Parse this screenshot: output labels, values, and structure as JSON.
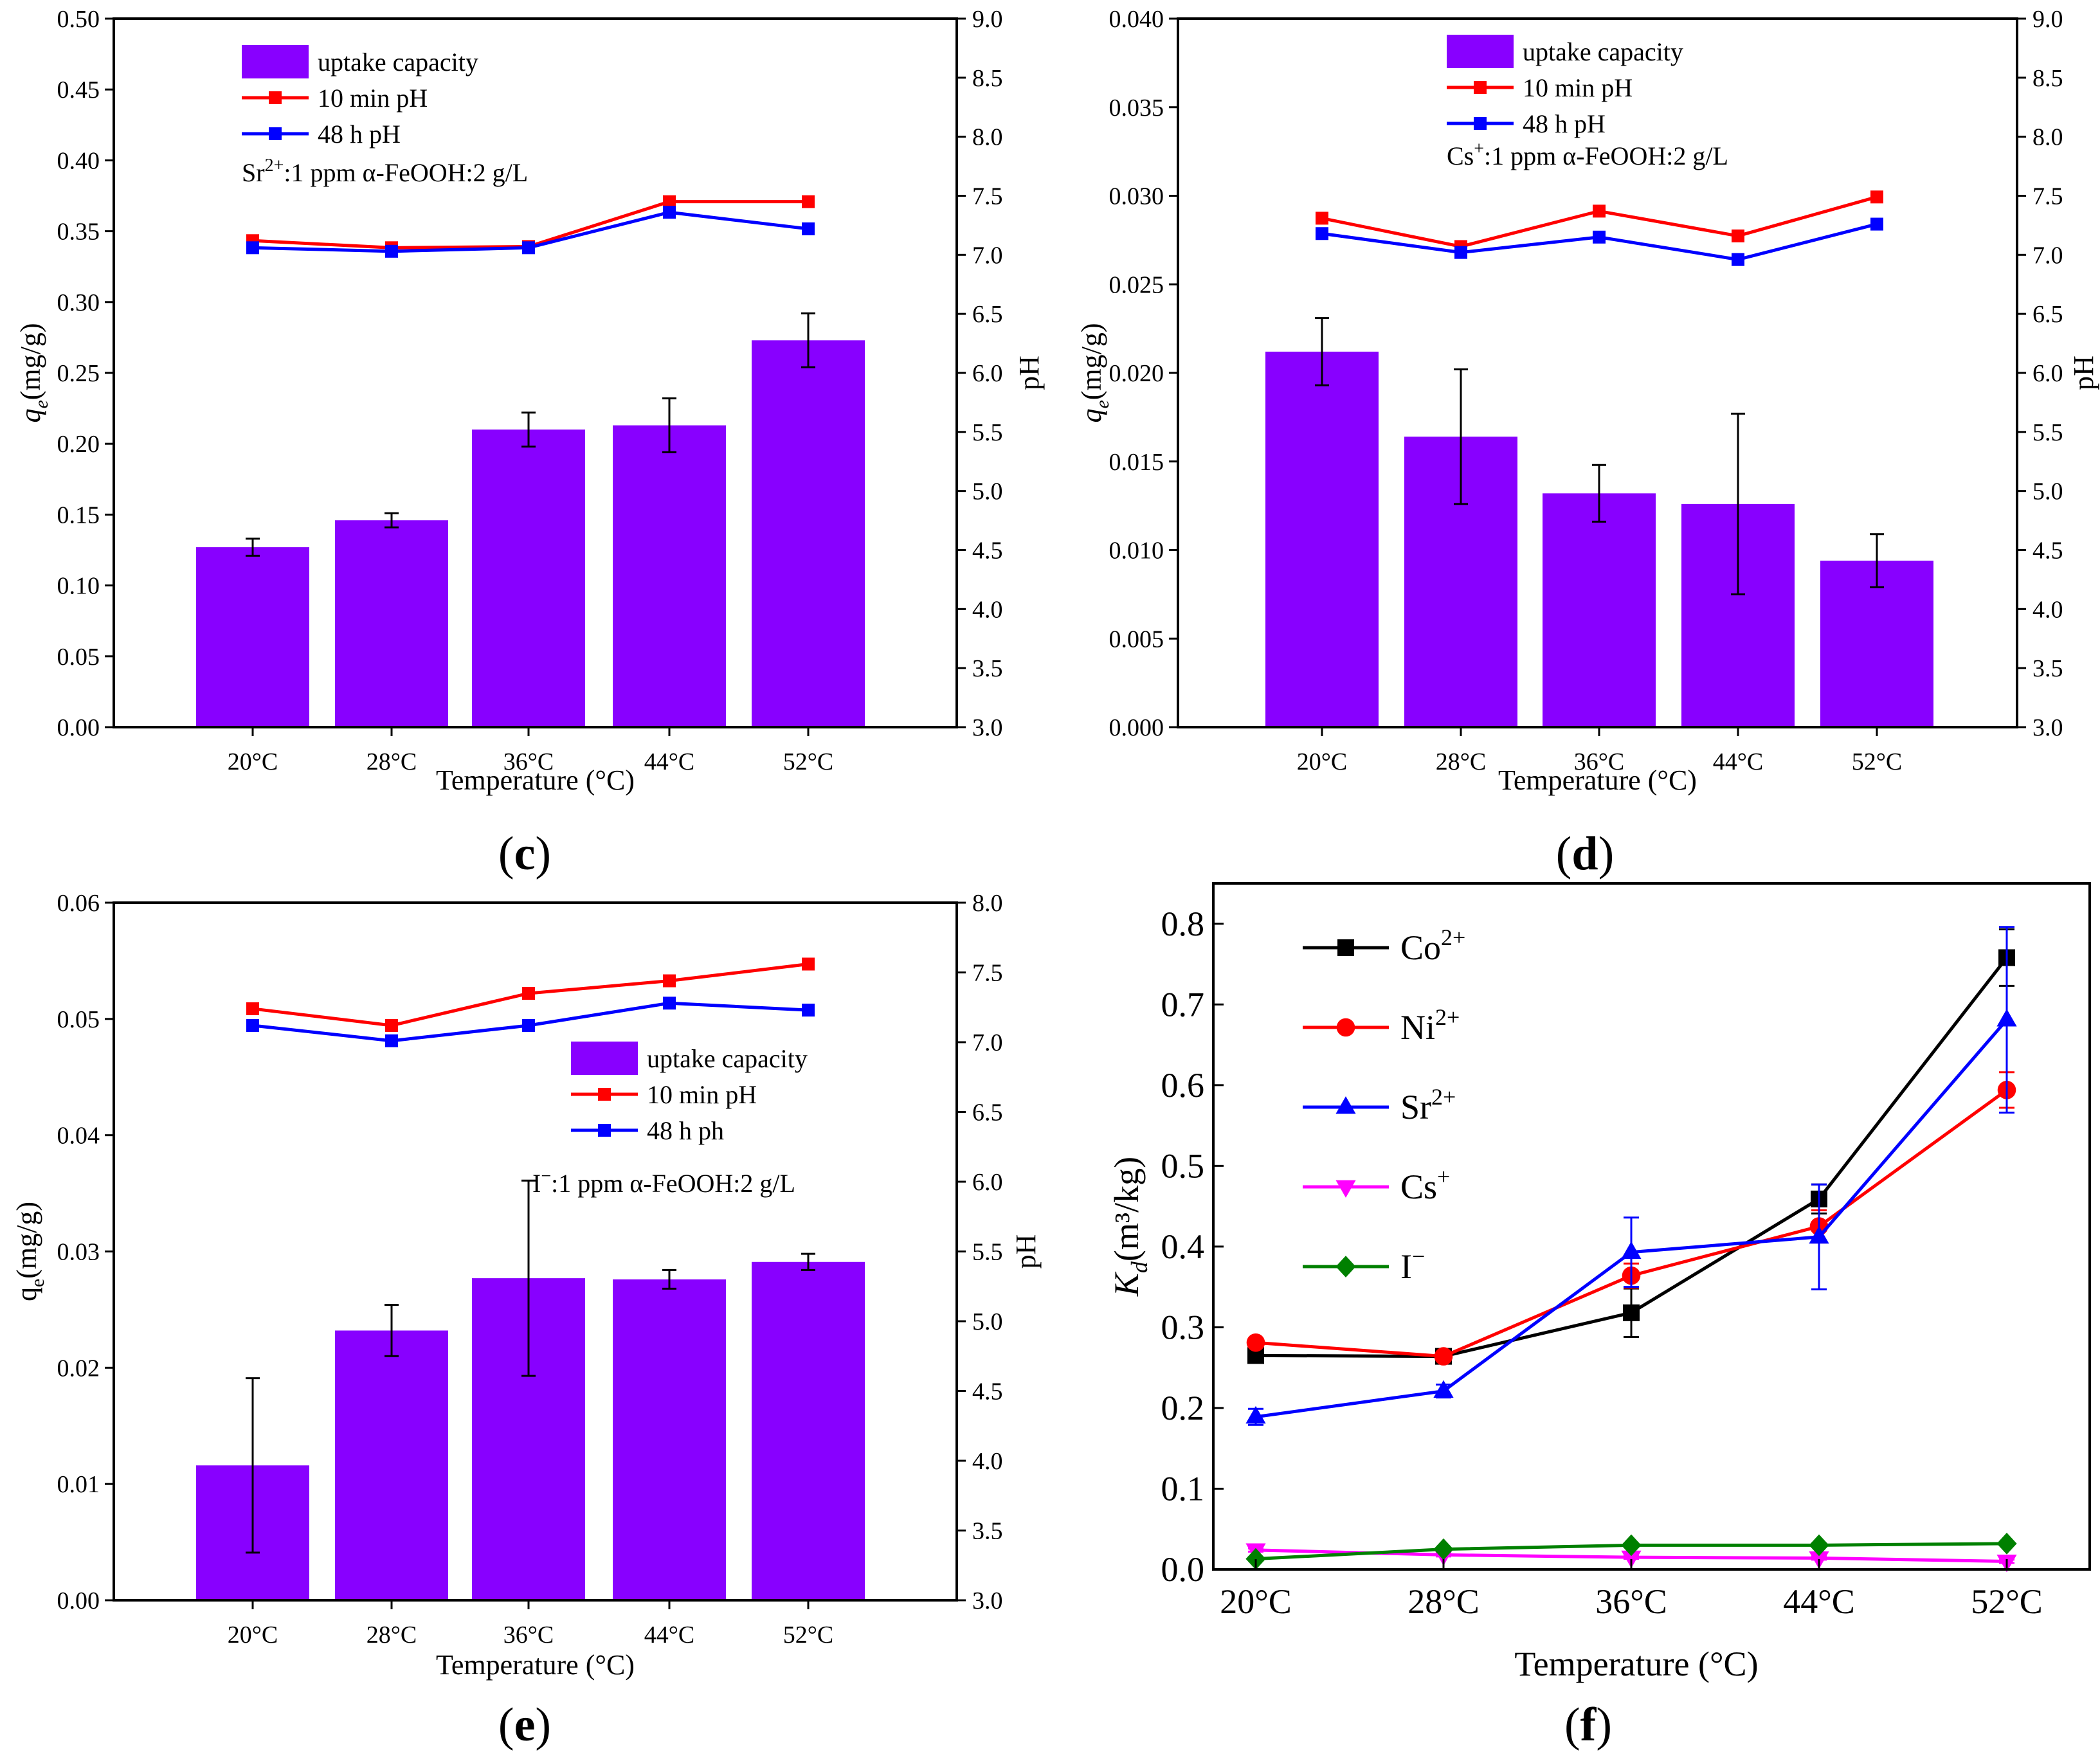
{
  "chart_data": [
    {
      "id": "c",
      "type": "bar",
      "panel_label": "c",
      "categories": [
        "20°C",
        "28°C",
        "36°C",
        "44°C",
        "52°C"
      ],
      "xlabel": "Temperature (°C)",
      "ylabel_main": "q",
      "ylabel_sub": "e",
      "ylabel_tail": "(mg/g)",
      "ylabel_italic": true,
      "y2label": "pH",
      "ylim": [
        0,
        0.5
      ],
      "yticks": [
        "0.00",
        "0.05",
        "0.10",
        "0.15",
        "0.20",
        "0.25",
        "0.30",
        "0.35",
        "0.40",
        "0.45",
        "0.50"
      ],
      "y2lim": [
        3.0,
        9.0
      ],
      "y2ticks": [
        "3.0",
        "3.5",
        "4.0",
        "4.5",
        "5.0",
        "5.5",
        "6.0",
        "6.5",
        "7.0",
        "7.5",
        "8.0",
        "8.5",
        "9.0"
      ],
      "legend_position": "top-left",
      "bars": {
        "name": "uptake capacity",
        "values": [
          0.127,
          0.146,
          0.21,
          0.213,
          0.273
        ],
        "errors": [
          0.006,
          0.005,
          0.012,
          0.019,
          0.019
        ]
      },
      "lines": [
        {
          "name": "10 min pH",
          "values": [
            7.12,
            7.06,
            7.07,
            7.45,
            7.45
          ]
        },
        {
          "name": "48 h pH",
          "values": [
            7.06,
            7.03,
            7.06,
            7.36,
            7.22
          ]
        }
      ],
      "annotation": {
        "ion": "Sr",
        "ion_sup": "2+",
        "text": ":1 ppm α-FeOOH:2 g/L"
      }
    },
    {
      "id": "d",
      "type": "bar",
      "panel_label": "d",
      "categories": [
        "20°C",
        "28°C",
        "36°C",
        "44°C",
        "52°C"
      ],
      "xlabel": "Temperature (°C)",
      "ylabel_main": "q",
      "ylabel_sub": "e",
      "ylabel_tail": "(mg/g)",
      "ylabel_italic": true,
      "y2label": "pH",
      "ylim": [
        0,
        0.04
      ],
      "yticks": [
        "0.000",
        "0.005",
        "0.010",
        "0.015",
        "0.020",
        "0.025",
        "0.030",
        "0.035",
        "0.040"
      ],
      "y2lim": [
        3.0,
        9.0
      ],
      "y2ticks": [
        "3.0",
        "3.5",
        "4.0",
        "4.5",
        "5.0",
        "5.5",
        "6.0",
        "6.5",
        "7.0",
        "7.5",
        "8.0",
        "8.5",
        "9.0"
      ],
      "legend_position": "top-left",
      "bars": {
        "name": "uptake capacity",
        "values": [
          0.0212,
          0.0164,
          0.0132,
          0.0126,
          0.0094
        ],
        "errors": [
          0.0019,
          0.0038,
          0.0016,
          0.0051,
          0.0015
        ]
      },
      "lines": [
        {
          "name": "10 min pH",
          "values": [
            7.31,
            7.07,
            7.37,
            7.16,
            7.49
          ]
        },
        {
          "name": "48 h pH",
          "values": [
            7.18,
            7.02,
            7.15,
            6.96,
            7.26
          ]
        }
      ],
      "annotation": {
        "ion": "Cs",
        "ion_sup": "+",
        "text": ":1 ppm α-FeOOH:2 g/L"
      }
    },
    {
      "id": "e",
      "type": "bar",
      "panel_label": "e",
      "categories": [
        "20°C",
        "28°C",
        "36°C",
        "44°C",
        "52°C"
      ],
      "xlabel": "Temperature (°C)",
      "ylabel_main": "q",
      "ylabel_sub": "e",
      "ylabel_tail": "(mg/g)",
      "ylabel_italic": false,
      "y2label": "pH",
      "ylim": [
        0,
        0.06
      ],
      "yticks": [
        "0.00",
        "0.01",
        "0.02",
        "0.03",
        "0.04",
        "0.05",
        "0.06"
      ],
      "y2lim": [
        3.0,
        8.0
      ],
      "y2ticks": [
        "3.0",
        "3.5",
        "4.0",
        "4.5",
        "5.0",
        "5.5",
        "6.0",
        "6.5",
        "7.0",
        "7.5",
        "8.0"
      ],
      "legend_position": "center-right",
      "bars": {
        "name": "uptake capacity",
        "values": [
          0.0116,
          0.0232,
          0.0277,
          0.0276,
          0.0291
        ],
        "errors": [
          0.0075,
          0.0022,
          0.0084,
          0.0008,
          0.0007
        ]
      },
      "lines": [
        {
          "name": "10 min pH",
          "values": [
            7.24,
            7.12,
            7.35,
            7.44,
            7.56
          ]
        },
        {
          "name": "48 h ph",
          "values": [
            7.12,
            7.01,
            7.12,
            7.28,
            7.23
          ]
        }
      ],
      "annotation": {
        "ion": "I",
        "ion_sup": "−",
        "text": ":1 ppm α-FeOOH:2 g/L"
      }
    },
    {
      "id": "f",
      "type": "line",
      "panel_label": "f",
      "categories": [
        "20°C",
        "28°C",
        "36°C",
        "44°C",
        "52°C"
      ],
      "xlabel": "Temperature (°C)",
      "ylabel_main": "K",
      "ylabel_sub": "d",
      "ylabel_tail": "(m³/kg)",
      "ylim": [
        0,
        0.85
      ],
      "yticks": [
        "0.0",
        "0.1",
        "0.2",
        "0.3",
        "0.4",
        "0.5",
        "0.6",
        "0.7",
        "0.8"
      ],
      "legend_position": "top-left",
      "series": [
        {
          "name": "Co",
          "sup": "2+",
          "color": "#000000",
          "marker": "square",
          "values": [
            0.265,
            0.264,
            0.318,
            0.459,
            0.758
          ],
          "errors": [
            0.005,
            0.005,
            0.03,
            0.018,
            0.035
          ]
        },
        {
          "name": "Ni",
          "sup": "2+",
          "color": "#ff0000",
          "marker": "circle",
          "values": [
            0.281,
            0.264,
            0.364,
            0.425,
            0.594
          ],
          "errors": [
            0.004,
            0.005,
            0.015,
            0.02,
            0.022
          ]
        },
        {
          "name": "Sr",
          "sup": "2+",
          "color": "#0000ff",
          "marker": "triangle-up",
          "values": [
            0.189,
            0.221,
            0.393,
            0.412,
            0.681
          ],
          "errors": [
            0.01,
            0.008,
            0.043,
            0.065,
            0.115
          ]
        },
        {
          "name": "Cs",
          "sup": "+",
          "color": "#ff00ff",
          "marker": "triangle-down",
          "values": [
            0.024,
            0.018,
            0.015,
            0.014,
            0.01
          ],
          "errors": [
            0.002,
            0.002,
            0.002,
            0.002,
            0.002
          ]
        },
        {
          "name": "I",
          "sup": "−",
          "color": "#008000",
          "marker": "diamond",
          "values": [
            0.013,
            0.025,
            0.03,
            0.03,
            0.032
          ],
          "errors": [
            0.002,
            0.002,
            0.002,
            0.002,
            0.002
          ]
        }
      ]
    }
  ],
  "colors": {
    "bar": "#8800ff",
    "ph10": "#ff0000",
    "ph48": "#0000ff"
  }
}
